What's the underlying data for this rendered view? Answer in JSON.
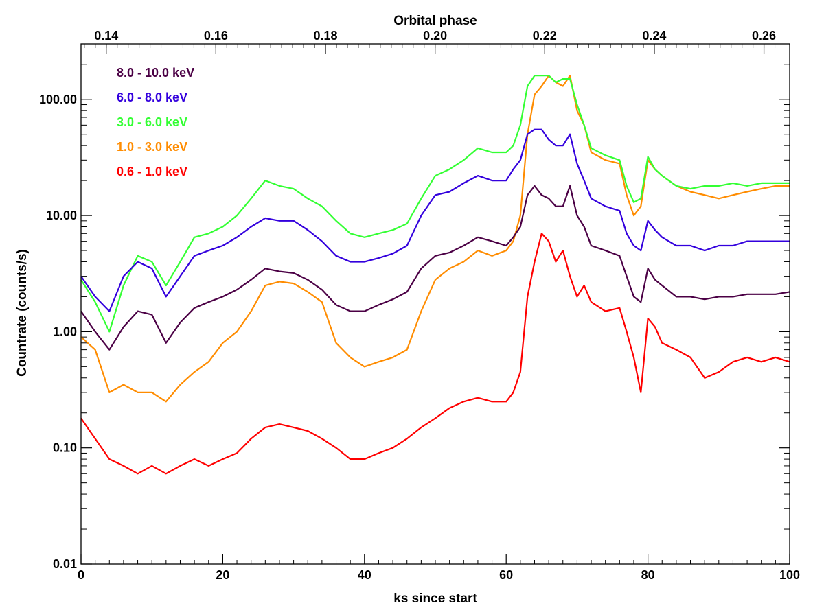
{
  "chart_data": {
    "type": "line",
    "title": "",
    "xlabel": "ks since start",
    "ylabel": "Countrate (counts/s)",
    "top_xlabel": "Orbital phase",
    "xlim": [
      0,
      100
    ],
    "ylim": [
      0.01,
      300
    ],
    "yscale": "log",
    "x_ticks": [
      0,
      20,
      40,
      60,
      80,
      100
    ],
    "x_tick_labels": [
      "0",
      "20",
      "40",
      "60",
      "80",
      "100"
    ],
    "y_ticks": [
      0.01,
      0.1,
      1,
      10,
      100
    ],
    "y_tick_labels": [
      "0.01",
      "0.10",
      "1.00",
      "10.00",
      "100.00"
    ],
    "top_axis": {
      "phase_at_x0": 0.1354,
      "phase_per_ks": 0.0012929,
      "ticks": [
        0.14,
        0.16,
        0.18,
        0.2,
        0.22,
        0.24,
        0.26
      ],
      "tick_labels": [
        "0.14",
        "0.16",
        "0.18",
        "0.20",
        "0.22",
        "0.24",
        "0.26"
      ]
    },
    "grid": false,
    "legend_position": "top-left",
    "series": [
      {
        "name": "0.6 - 1.0 keV",
        "color": "#ff0000",
        "x": [
          0,
          2,
          4,
          6,
          8,
          10,
          12,
          14,
          16,
          18,
          20,
          22,
          24,
          26,
          28,
          30,
          32,
          34,
          36,
          38,
          40,
          42,
          44,
          46,
          48,
          50,
          52,
          54,
          56,
          58,
          60,
          61,
          62,
          63,
          64,
          65,
          66,
          67,
          68,
          69,
          70,
          71,
          72,
          74,
          76,
          77,
          78,
          79,
          80,
          81,
          82,
          84,
          86,
          88,
          90,
          92,
          94,
          96,
          98,
          100
        ],
        "values": [
          0.18,
          0.12,
          0.08,
          0.07,
          0.06,
          0.07,
          0.06,
          0.07,
          0.08,
          0.07,
          0.08,
          0.09,
          0.12,
          0.15,
          0.16,
          0.15,
          0.14,
          0.12,
          0.1,
          0.08,
          0.08,
          0.09,
          0.1,
          0.12,
          0.15,
          0.18,
          0.22,
          0.25,
          0.27,
          0.25,
          0.25,
          0.3,
          0.45,
          2.0,
          4.0,
          7.0,
          6.0,
          4.0,
          5.0,
          3.0,
          2.0,
          2.5,
          1.8,
          1.5,
          1.6,
          1.0,
          0.6,
          0.3,
          1.3,
          1.1,
          0.8,
          0.7,
          0.6,
          0.4,
          0.45,
          0.55,
          0.6,
          0.55,
          0.6,
          0.55
        ]
      },
      {
        "name": "1.0 - 3.0 keV",
        "color": "#ff8c00",
        "x": [
          0,
          2,
          4,
          6,
          8,
          10,
          12,
          14,
          16,
          18,
          20,
          22,
          24,
          26,
          28,
          30,
          32,
          34,
          36,
          38,
          40,
          42,
          44,
          46,
          48,
          50,
          52,
          54,
          56,
          58,
          60,
          61,
          62,
          63,
          64,
          65,
          66,
          67,
          68,
          69,
          70,
          71,
          72,
          74,
          76,
          77,
          78,
          79,
          80,
          81,
          82,
          84,
          86,
          88,
          90,
          92,
          94,
          96,
          98,
          100
        ],
        "values": [
          0.9,
          0.7,
          0.3,
          0.35,
          0.3,
          0.3,
          0.25,
          0.35,
          0.45,
          0.55,
          0.8,
          1.0,
          1.5,
          2.5,
          2.7,
          2.6,
          2.2,
          1.8,
          0.8,
          0.6,
          0.5,
          0.55,
          0.6,
          0.7,
          1.5,
          2.8,
          3.5,
          4.0,
          5.0,
          4.5,
          5.0,
          6.0,
          10.0,
          50.0,
          110.0,
          130.0,
          160.0,
          140.0,
          130.0,
          160.0,
          80.0,
          60.0,
          35.0,
          30.0,
          28.0,
          15.0,
          10.0,
          12.0,
          30.0,
          25.0,
          22.0,
          18.0,
          16.0,
          15.0,
          14.0,
          15.0,
          16.0,
          17.0,
          18.0,
          18.0
        ]
      },
      {
        "name": "3.0 - 6.0 keV",
        "color": "#33ff33",
        "x": [
          0,
          2,
          4,
          6,
          8,
          10,
          12,
          14,
          16,
          18,
          20,
          22,
          24,
          26,
          28,
          30,
          32,
          34,
          36,
          38,
          40,
          42,
          44,
          46,
          48,
          50,
          52,
          54,
          56,
          58,
          60,
          61,
          62,
          63,
          64,
          65,
          66,
          67,
          68,
          69,
          70,
          71,
          72,
          74,
          76,
          77,
          78,
          79,
          80,
          81,
          82,
          84,
          86,
          88,
          90,
          92,
          94,
          96,
          98,
          100
        ],
        "values": [
          2.8,
          1.8,
          1.0,
          2.5,
          4.5,
          4.0,
          2.5,
          4.0,
          6.5,
          7.0,
          8.0,
          10.0,
          14.0,
          20.0,
          18.0,
          17.0,
          14.0,
          12.0,
          9.0,
          7.0,
          6.5,
          7.0,
          7.5,
          8.5,
          14.0,
          22.0,
          25.0,
          30.0,
          38.0,
          35.0,
          35.0,
          40.0,
          60.0,
          130.0,
          160.0,
          160.0,
          160.0,
          140.0,
          150.0,
          150.0,
          90.0,
          60.0,
          38.0,
          33.0,
          30.0,
          18.0,
          13.0,
          14.0,
          32.0,
          25.0,
          22.0,
          18.0,
          17.0,
          18.0,
          18.0,
          19.0,
          18.0,
          19.0,
          19.0,
          19.0
        ]
      },
      {
        "name": "6.0 - 8.0 keV",
        "color": "#3300dd",
        "x": [
          0,
          2,
          4,
          6,
          8,
          10,
          12,
          14,
          16,
          18,
          20,
          22,
          24,
          26,
          28,
          30,
          32,
          34,
          36,
          38,
          40,
          42,
          44,
          46,
          48,
          50,
          52,
          54,
          56,
          58,
          60,
          61,
          62,
          63,
          64,
          65,
          66,
          67,
          68,
          69,
          70,
          71,
          72,
          74,
          76,
          77,
          78,
          79,
          80,
          81,
          82,
          84,
          86,
          88,
          90,
          92,
          94,
          96,
          98,
          100
        ],
        "values": [
          3.0,
          2.0,
          1.5,
          3.0,
          4.0,
          3.5,
          2.0,
          3.0,
          4.5,
          5.0,
          5.5,
          6.5,
          8.0,
          9.5,
          9.0,
          9.0,
          7.5,
          6.0,
          4.5,
          4.0,
          4.0,
          4.3,
          4.7,
          5.5,
          10.0,
          15.0,
          16.0,
          19.0,
          22.0,
          20.0,
          20.0,
          25.0,
          30.0,
          50.0,
          55.0,
          55.0,
          45.0,
          40.0,
          40.0,
          50.0,
          28.0,
          20.0,
          14.0,
          12.0,
          11.0,
          7.0,
          5.5,
          5.0,
          9.0,
          7.5,
          6.5,
          5.5,
          5.5,
          5.0,
          5.5,
          5.5,
          6.0,
          6.0,
          6.0,
          6.0
        ]
      },
      {
        "name": "8.0 - 10.0 keV",
        "color": "#4b0045",
        "x": [
          0,
          2,
          4,
          6,
          8,
          10,
          12,
          14,
          16,
          18,
          20,
          22,
          24,
          26,
          28,
          30,
          32,
          34,
          36,
          38,
          40,
          42,
          44,
          46,
          48,
          50,
          52,
          54,
          56,
          58,
          60,
          61,
          62,
          63,
          64,
          65,
          66,
          67,
          68,
          69,
          70,
          71,
          72,
          74,
          76,
          77,
          78,
          79,
          80,
          81,
          82,
          84,
          86,
          88,
          90,
          92,
          94,
          96,
          98,
          100
        ],
        "values": [
          1.5,
          1.0,
          0.7,
          1.1,
          1.5,
          1.4,
          0.8,
          1.2,
          1.6,
          1.8,
          2.0,
          2.3,
          2.8,
          3.5,
          3.3,
          3.2,
          2.8,
          2.3,
          1.7,
          1.5,
          1.5,
          1.7,
          1.9,
          2.2,
          3.5,
          4.5,
          4.8,
          5.5,
          6.5,
          6.0,
          5.5,
          6.5,
          8.0,
          15.0,
          18.0,
          15.0,
          14.0,
          12.0,
          12.0,
          18.0,
          10.0,
          8.0,
          5.5,
          5.0,
          4.5,
          3.0,
          2.0,
          1.8,
          3.5,
          2.8,
          2.5,
          2.0,
          2.0,
          1.9,
          2.0,
          2.0,
          2.1,
          2.1,
          2.1,
          2.2
        ]
      }
    ]
  }
}
